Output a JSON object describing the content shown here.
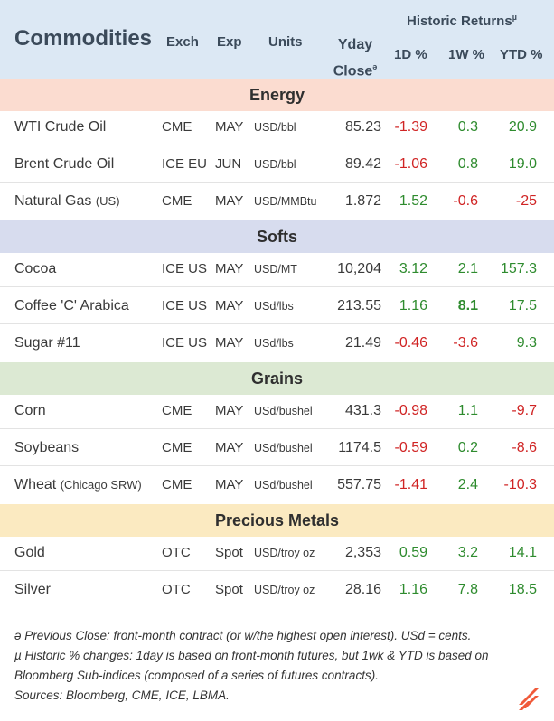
{
  "header": {
    "title": "Commodities",
    "exch": "Exch",
    "exp": "Exp",
    "units": "Units",
    "yday_line1": "Yday",
    "yday_line2": "Close",
    "yday_mark": "ə",
    "historic": "Historic Returns",
    "historic_mark": "µ",
    "d1": "1D %",
    "w1": "1W %",
    "ytd": "YTD %"
  },
  "sections": {
    "energy": "Energy",
    "softs": "Softs",
    "grains": "Grains",
    "metals": "Precious Metals"
  },
  "rows": [
    {
      "name": "WTI Crude Oil",
      "name_suffix": "",
      "exch": "CME",
      "exp": "MAY",
      "units": "USD/bbl",
      "close": "85.23",
      "d1": "-1.39",
      "w1": "0.3",
      "ytd": "20.9"
    },
    {
      "name": "Brent Crude Oil",
      "name_suffix": "",
      "exch": "ICE EU",
      "exp": "JUN",
      "units": "USD/bbl",
      "close": "89.42",
      "d1": "-1.06",
      "w1": "0.8",
      "ytd": "19.0"
    },
    {
      "name": "Natural Gas",
      "name_suffix": "(US)",
      "exch": "CME",
      "exp": "MAY",
      "units": "USD/MMBtu",
      "close": "1.872",
      "d1": "1.52",
      "w1": "-0.6",
      "ytd": "-25"
    },
    {
      "name": "Cocoa",
      "name_suffix": "",
      "exch": "ICE US",
      "exp": "MAY",
      "units": "USD/MT",
      "close": "10,204",
      "d1": "3.12",
      "w1": "2.1",
      "ytd": "157.3"
    },
    {
      "name": "Coffee 'C' Arabica",
      "name_suffix": "",
      "exch": "ICE US",
      "exp": "MAY",
      "units": "USd/lbs",
      "close": "213.55",
      "d1": "1.16",
      "w1": "8.1",
      "ytd": "17.5"
    },
    {
      "name": "Sugar #11",
      "name_suffix": "",
      "exch": "ICE US",
      "exp": "MAY",
      "units": "USd/lbs",
      "close": "21.49",
      "d1": "-0.46",
      "w1": "-3.6",
      "ytd": "9.3"
    },
    {
      "name": "Corn",
      "name_suffix": "",
      "exch": "CME",
      "exp": "MAY",
      "units": "USd/bushel",
      "close": "431.3",
      "d1": "-0.98",
      "w1": "1.1",
      "ytd": "-9.7"
    },
    {
      "name": "Soybeans",
      "name_suffix": "",
      "exch": "CME",
      "exp": "MAY",
      "units": "USd/bushel",
      "close": "1174.5",
      "d1": "-0.59",
      "w1": "0.2",
      "ytd": "-8.6"
    },
    {
      "name": "Wheat",
      "name_suffix": "(Chicago SRW)",
      "exch": "CME",
      "exp": "MAY",
      "units": "USd/bushel",
      "close": "557.75",
      "d1": "-1.41",
      "w1": "2.4",
      "ytd": "-10.3"
    },
    {
      "name": "Gold",
      "name_suffix": "",
      "exch": "OTC",
      "exp": "Spot",
      "units": "USD/troy oz",
      "close": "2,353",
      "d1": "0.59",
      "w1": "3.2",
      "ytd": "14.1"
    },
    {
      "name": "Silver",
      "name_suffix": "",
      "exch": "OTC",
      "exp": "Spot",
      "units": "USD/troy oz",
      "close": "28.16",
      "d1": "1.16",
      "w1": "7.8",
      "ytd": "18.5"
    }
  ],
  "footnotes": {
    "note1": "ə Previous Close: front-month contract (or w/the highest open interest). USd = cents.",
    "note2": "µ Historic % changes: 1day is based on front-month futures, but 1wk & YTD is based on Bloomberg Sub-indices (composed of a series of futures contracts).",
    "note3": "Sources: Bloomberg, CME, ICE, LBMA."
  },
  "colors": {
    "positive": "#2e8b2e",
    "negative": "#d02424",
    "header_bg": "#dce8f4",
    "energy_bg": "#fbdcd0",
    "softs_bg": "#d7dcee",
    "grains_bg": "#dce9d3",
    "metals_bg": "#fbeac1"
  }
}
